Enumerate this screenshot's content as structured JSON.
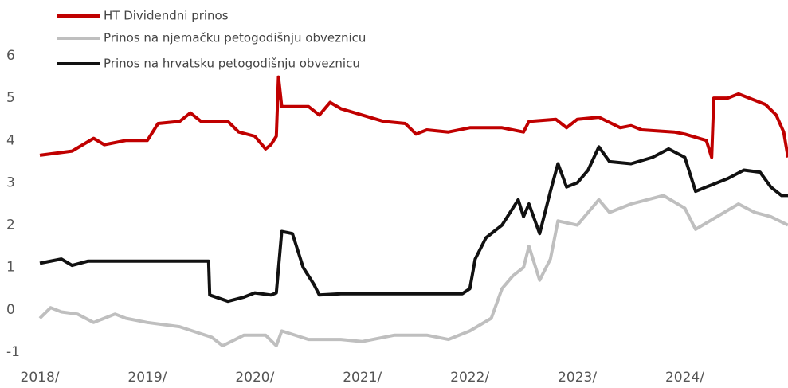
{
  "chart_data": {
    "type": "line",
    "xlim": [
      2018,
      2024.96
    ],
    "ylim": [
      -1,
      6
    ],
    "yticks": [
      -1,
      0,
      1,
      2,
      3,
      4,
      5,
      6
    ],
    "xticks": [
      {
        "value": 2018,
        "label": "2018/"
      },
      {
        "value": 2019,
        "label": "2019/"
      },
      {
        "value": 2020,
        "label": "2020/"
      },
      {
        "value": 2021,
        "label": "2021/"
      },
      {
        "value": 2022,
        "label": "2022/"
      },
      {
        "value": 2023,
        "label": "2023/"
      },
      {
        "value": 2024,
        "label": "2024/"
      }
    ],
    "series": [
      {
        "name": "HT Dividendni prinos",
        "color": "#c00000",
        "x": [
          2018.0,
          2018.3,
          2018.5,
          2018.6,
          2018.8,
          2019.0,
          2019.1,
          2019.3,
          2019.4,
          2019.5,
          2019.75,
          2019.85,
          2020.0,
          2020.1,
          2020.15,
          2020.2,
          2020.22,
          2020.25,
          2020.5,
          2020.6,
          2020.7,
          2020.8,
          2021.0,
          2021.2,
          2021.4,
          2021.5,
          2021.6,
          2021.8,
          2022.0,
          2022.3,
          2022.5,
          2022.55,
          2022.8,
          2022.9,
          2023.0,
          2023.2,
          2023.4,
          2023.5,
          2023.6,
          2023.9,
          2024.0,
          2024.2,
          2024.25,
          2024.27,
          2024.4,
          2024.5,
          2024.6,
          2024.75,
          2024.85,
          2024.92,
          2024.96
        ],
        "values": [
          3.65,
          3.75,
          4.05,
          3.9,
          4.0,
          4.0,
          4.4,
          4.45,
          4.65,
          4.45,
          4.45,
          4.2,
          4.1,
          3.8,
          3.9,
          4.1,
          5.5,
          4.8,
          4.8,
          4.6,
          4.9,
          4.75,
          4.6,
          4.45,
          4.4,
          4.15,
          4.25,
          4.2,
          4.3,
          4.3,
          4.2,
          4.45,
          4.5,
          4.3,
          4.5,
          4.55,
          4.3,
          4.35,
          4.25,
          4.2,
          4.15,
          4.0,
          3.6,
          5.0,
          5.0,
          5.1,
          5.0,
          4.85,
          4.6,
          4.2,
          3.6
        ]
      },
      {
        "name": "Prinos na njemačku petogodišnju obveznicu",
        "color": "#bfbfbf",
        "x": [
          2018.0,
          2018.1,
          2018.2,
          2018.35,
          2018.5,
          2018.7,
          2018.8,
          2019.0,
          2019.3,
          2019.6,
          2019.7,
          2019.9,
          2020.1,
          2020.2,
          2020.25,
          2020.5,
          2020.8,
          2021.0,
          2021.3,
          2021.6,
          2021.8,
          2022.0,
          2022.2,
          2022.3,
          2022.4,
          2022.5,
          2022.55,
          2022.65,
          2022.75,
          2022.82,
          2023.0,
          2023.2,
          2023.3,
          2023.5,
          2023.8,
          2024.0,
          2024.1,
          2024.3,
          2024.5,
          2024.65,
          2024.8,
          2024.96
        ],
        "values": [
          -0.2,
          0.05,
          -0.05,
          -0.1,
          -0.3,
          -0.1,
          -0.2,
          -0.3,
          -0.4,
          -0.65,
          -0.85,
          -0.6,
          -0.6,
          -0.85,
          -0.5,
          -0.7,
          -0.7,
          -0.75,
          -0.6,
          -0.6,
          -0.7,
          -0.5,
          -0.2,
          0.5,
          0.8,
          1.0,
          1.5,
          0.7,
          1.2,
          2.1,
          2.0,
          2.6,
          2.3,
          2.5,
          2.7,
          2.4,
          1.9,
          2.2,
          2.5,
          2.3,
          2.2,
          2.0
        ]
      },
      {
        "name": "Prinos na hrvatsku petogodišnju obveznicu",
        "color": "#111111",
        "x": [
          2018.0,
          2018.2,
          2018.3,
          2018.45,
          2019.57,
          2019.58,
          2019.75,
          2019.9,
          2020.0,
          2020.15,
          2020.2,
          2020.25,
          2020.35,
          2020.45,
          2020.55,
          2020.6,
          2020.8,
          2021.0,
          2021.93,
          2022.0,
          2022.05,
          2022.15,
          2022.3,
          2022.45,
          2022.5,
          2022.55,
          2022.65,
          2022.75,
          2022.82,
          2022.9,
          2023.0,
          2023.1,
          2023.2,
          2023.3,
          2023.5,
          2023.7,
          2023.85,
          2024.0,
          2024.1,
          2024.2,
          2024.4,
          2024.55,
          2024.7,
          2024.8,
          2024.9,
          2024.96
        ],
        "values": [
          1.1,
          1.2,
          1.05,
          1.15,
          1.15,
          0.35,
          0.2,
          0.3,
          0.4,
          0.35,
          0.4,
          1.85,
          1.8,
          1.0,
          0.6,
          0.35,
          0.38,
          0.38,
          0.38,
          0.5,
          1.2,
          1.7,
          2.0,
          2.6,
          2.2,
          2.5,
          1.8,
          2.8,
          3.45,
          2.9,
          3.0,
          3.3,
          3.85,
          3.5,
          3.45,
          3.6,
          3.8,
          3.6,
          2.8,
          2.9,
          3.1,
          3.3,
          3.25,
          2.9,
          2.7,
          2.7
        ]
      }
    ]
  }
}
